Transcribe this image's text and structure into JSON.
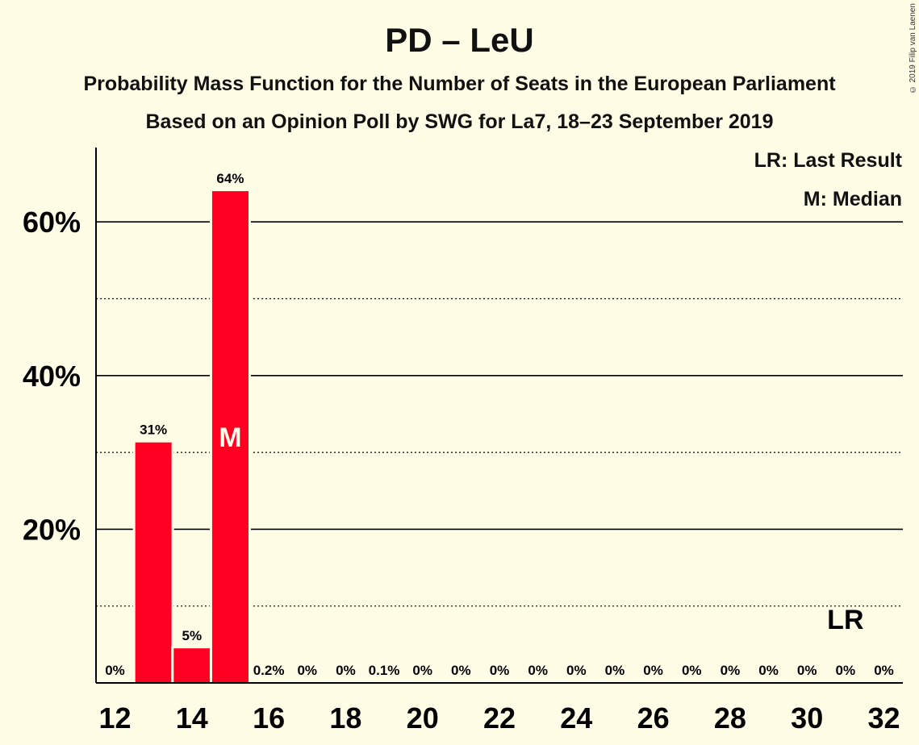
{
  "title": "PD – LeU",
  "subtitle": "Probability Mass Function for the Number of Seats in the European Parliament",
  "subtitle2": "Based on an Opinion Poll by SWG for La7, 18–23 September 2019",
  "copyright": "© 2019 Filip van Laenen",
  "legend": {
    "last_result": "LR: Last Result",
    "median": "M: Median"
  },
  "colors": {
    "bar": "#ff0022",
    "background": "#fffde6"
  },
  "chart_data": {
    "type": "bar",
    "x": [
      12,
      13,
      14,
      15,
      16,
      17,
      18,
      19,
      20,
      21,
      22,
      23,
      24,
      25,
      26,
      27,
      28,
      29,
      30,
      31,
      32
    ],
    "values": [
      0,
      31.3,
      4.5,
      64,
      0.2,
      0,
      0,
      0.1,
      0,
      0,
      0,
      0,
      0,
      0,
      0,
      0,
      0,
      0,
      0,
      0,
      0
    ],
    "labels": [
      "0%",
      "31%",
      "5%",
      "64%",
      "0.2%",
      "0%",
      "0%",
      "0.1%",
      "0%",
      "0%",
      "0%",
      "0%",
      "0%",
      "0%",
      "0%",
      "0%",
      "0%",
      "0%",
      "0%",
      "0%",
      "0%"
    ],
    "x_ticks": [
      12,
      14,
      16,
      18,
      20,
      22,
      24,
      26,
      28,
      30,
      32
    ],
    "y_ticks": [
      20,
      40,
      60
    ],
    "y_tick_labels": [
      "20%",
      "40%",
      "60%"
    ],
    "ylim": [
      0,
      70
    ],
    "grid_solid": [
      20,
      40,
      60
    ],
    "grid_dotted": [
      10,
      30,
      50
    ],
    "median": {
      "x": 15,
      "label": "M"
    },
    "last_result": {
      "x": 31,
      "label": "LR"
    }
  }
}
